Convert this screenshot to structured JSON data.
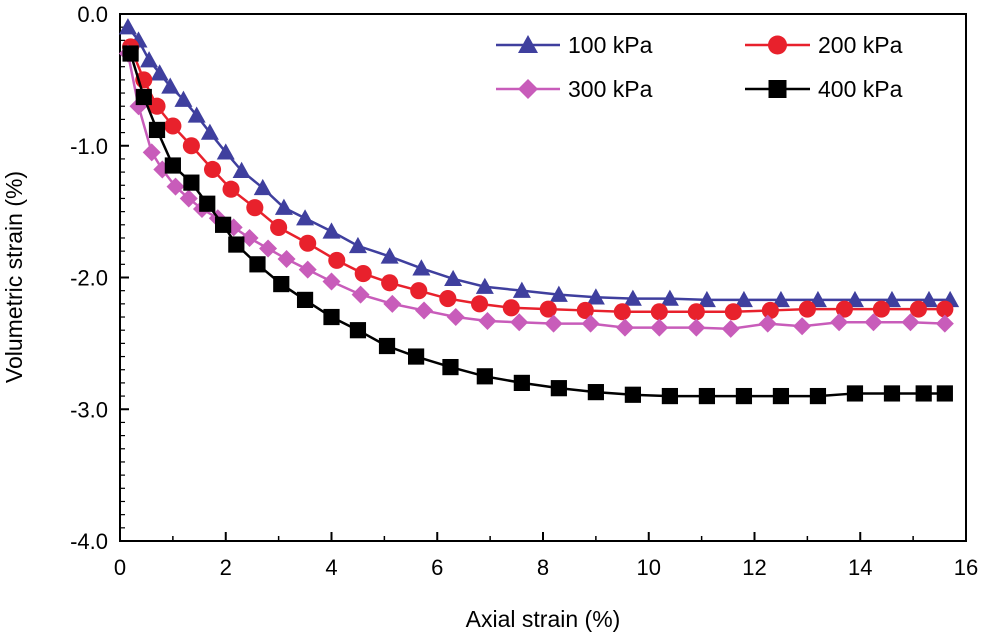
{
  "chart_data": {
    "type": "line",
    "title": "",
    "xlabel": "Axial strain (%)",
    "ylabel": "Volumetric strain (%)",
    "xlim": [
      0,
      16
    ],
    "ylim": [
      -4.0,
      0.0
    ],
    "xticks": [
      0,
      2,
      4,
      6,
      8,
      10,
      12,
      14,
      16
    ],
    "xtick_labels": [
      "0",
      "2",
      "4",
      "6",
      "8",
      "10",
      "12",
      "14",
      "16"
    ],
    "yticks": [
      0.0,
      -1.0,
      -2.0,
      -3.0,
      -4.0
    ],
    "ytick_labels": [
      "0.0",
      "-1.0",
      "-2.0",
      "-3.0",
      "-4.0"
    ],
    "grid": false,
    "legend_position": "top-right",
    "series": [
      {
        "name": "100 kPa",
        "color": "#3f3f9e",
        "marker": "triangle",
        "x": [
          0.15,
          0.35,
          0.55,
          0.75,
          0.95,
          1.2,
          1.45,
          1.7,
          2.0,
          2.3,
          2.7,
          3.1,
          3.5,
          4.0,
          4.5,
          5.1,
          5.7,
          6.3,
          6.9,
          7.6,
          8.3,
          9.0,
          9.7,
          10.4,
          11.1,
          11.8,
          12.5,
          13.2,
          13.9,
          14.6,
          15.3,
          15.7
        ],
        "y": [
          -0.1,
          -0.2,
          -0.35,
          -0.45,
          -0.55,
          -0.65,
          -0.77,
          -0.9,
          -1.05,
          -1.19,
          -1.32,
          -1.47,
          -1.55,
          -1.65,
          -1.76,
          -1.84,
          -1.93,
          -2.01,
          -2.07,
          -2.1,
          -2.13,
          -2.15,
          -2.16,
          -2.16,
          -2.17,
          -2.17,
          -2.17,
          -2.17,
          -2.17,
          -2.17,
          -2.17,
          -2.17
        ]
      },
      {
        "name": "200 kPa",
        "color": "#e8212c",
        "marker": "circle",
        "x": [
          0.2,
          0.45,
          0.7,
          1.0,
          1.35,
          1.75,
          2.1,
          2.55,
          3.0,
          3.55,
          4.1,
          4.6,
          5.1,
          5.65,
          6.2,
          6.8,
          7.4,
          8.1,
          8.8,
          9.5,
          10.2,
          10.9,
          11.6,
          12.3,
          13.0,
          13.7,
          14.4,
          15.1,
          15.6
        ],
        "y": [
          -0.25,
          -0.5,
          -0.7,
          -0.85,
          -1.0,
          -1.18,
          -1.33,
          -1.47,
          -1.62,
          -1.74,
          -1.87,
          -1.97,
          -2.04,
          -2.1,
          -2.16,
          -2.2,
          -2.23,
          -2.24,
          -2.25,
          -2.26,
          -2.26,
          -2.26,
          -2.26,
          -2.25,
          -2.24,
          -2.24,
          -2.24,
          -2.24,
          -2.24
        ]
      },
      {
        "name": "300 kPa",
        "color": "#c85cba",
        "marker": "diamond",
        "x": [
          0.15,
          0.35,
          0.6,
          0.8,
          1.05,
          1.3,
          1.55,
          1.85,
          2.15,
          2.45,
          2.8,
          3.15,
          3.55,
          4.0,
          4.55,
          5.15,
          5.75,
          6.35,
          6.95,
          7.55,
          8.2,
          8.9,
          9.55,
          10.2,
          10.9,
          11.55,
          12.25,
          12.9,
          13.6,
          14.25,
          14.95,
          15.6
        ],
        "y": [
          -0.3,
          -0.7,
          -1.05,
          -1.18,
          -1.31,
          -1.4,
          -1.48,
          -1.55,
          -1.62,
          -1.7,
          -1.78,
          -1.86,
          -1.94,
          -2.03,
          -2.13,
          -2.2,
          -2.25,
          -2.3,
          -2.33,
          -2.34,
          -2.35,
          -2.35,
          -2.38,
          -2.38,
          -2.38,
          -2.39,
          -2.35,
          -2.37,
          -2.34,
          -2.34,
          -2.34,
          -2.35
        ]
      },
      {
        "name": "400 kPa",
        "color": "#000000",
        "marker": "square",
        "x": [
          0.2,
          0.45,
          0.7,
          1.0,
          1.35,
          1.65,
          1.95,
          2.2,
          2.6,
          3.05,
          3.5,
          4.0,
          4.5,
          5.05,
          5.6,
          6.25,
          6.9,
          7.6,
          8.3,
          9.0,
          9.7,
          10.4,
          11.1,
          11.8,
          12.5,
          13.2,
          13.9,
          14.6,
          15.2,
          15.6
        ],
        "y": [
          -0.3,
          -0.63,
          -0.88,
          -1.15,
          -1.28,
          -1.44,
          -1.6,
          -1.75,
          -1.9,
          -2.05,
          -2.17,
          -2.3,
          -2.4,
          -2.52,
          -2.6,
          -2.68,
          -2.75,
          -2.8,
          -2.84,
          -2.87,
          -2.89,
          -2.9,
          -2.9,
          -2.9,
          -2.9,
          -2.9,
          -2.88,
          -2.88,
          -2.88,
          -2.88
        ]
      }
    ]
  }
}
